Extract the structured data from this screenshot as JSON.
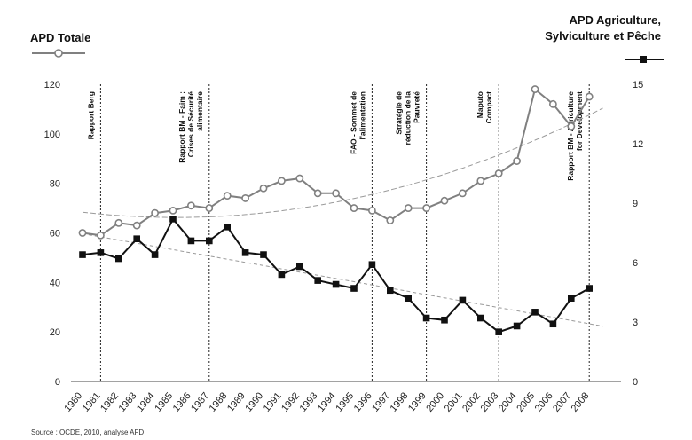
{
  "chart_data": {
    "type": "line",
    "left_axis_label": "APD Totale",
    "right_axis_label_line1": "APD Agriculture,",
    "right_axis_label_line2": "Sylviculture et Pêche",
    "y_left_lim": [
      0,
      120
    ],
    "y_left_ticks": [
      "0",
      "20",
      "40",
      "60",
      "80",
      "100",
      "120"
    ],
    "y_right_lim": [
      0,
      15
    ],
    "y_right_ticks": [
      "0",
      "3",
      "6",
      "9",
      "12",
      "15"
    ],
    "x": [
      1980,
      1981,
      1982,
      1983,
      1984,
      1985,
      1986,
      1987,
      1988,
      1989,
      1990,
      1991,
      1992,
      1993,
      1994,
      1995,
      1996,
      1997,
      1998,
      1999,
      2000,
      2001,
      2002,
      2003,
      2004,
      2005,
      2006,
      2007,
      2008
    ],
    "x_tick_labels": [
      "1980",
      "1981",
      "1982",
      "1983",
      "1984",
      "1985",
      "1986",
      "1987",
      "1988",
      "1989",
      "1990",
      "1991",
      "1992",
      "1993",
      "1994",
      "1995",
      "1996",
      "1997",
      "1998",
      "1999",
      "2000",
      "2001",
      "2002",
      "2003",
      "2004",
      "2005",
      "2006",
      "2007",
      "2008"
    ],
    "series": [
      {
        "axis": "left",
        "marker": "circle-open",
        "color": "#808080",
        "values": [
          60,
          59,
          64,
          63,
          68,
          69,
          71,
          70,
          75,
          74,
          78,
          81,
          82,
          76,
          76,
          70,
          69,
          65,
          70,
          70,
          73,
          76,
          81,
          84,
          89,
          118,
          112,
          103,
          115
        ]
      },
      {
        "axis": "right",
        "marker": "square-filled",
        "color": "#111111",
        "values": [
          6.4,
          6.5,
          6.2,
          7.2,
          6.4,
          8.2,
          7.1,
          7.1,
          7.8,
          6.5,
          6.4,
          5.4,
          5.8,
          5.1,
          4.9,
          4.7,
          5.9,
          4.6,
          4.2,
          3.2,
          3.1,
          4.1,
          3.2,
          2.5,
          2.8,
          3.5,
          2.9,
          4.2,
          4.7
        ]
      }
    ],
    "events": [
      {
        "year": 1981,
        "label": [
          "Rapport Berg"
        ]
      },
      {
        "year": 1987,
        "label": [
          "Rapport BM - Faim :",
          "Crises de Sécurité",
          "alimentaire"
        ]
      },
      {
        "year": 1996,
        "label": [
          "FAO - Sommet de",
          "l'alimentation"
        ]
      },
      {
        "year": 1999,
        "label": [
          "Stratégie de",
          "réduction de la",
          "Pauvreté"
        ]
      },
      {
        "year": 2003,
        "label": [
          "Maputo",
          "Compact"
        ]
      },
      {
        "year": 2008,
        "label": [
          "Rapport BM - Agriculture",
          "for Development"
        ]
      }
    ],
    "legend": "top",
    "grid": false,
    "source": "Source : OCDE, 2010, analyse AFD"
  }
}
